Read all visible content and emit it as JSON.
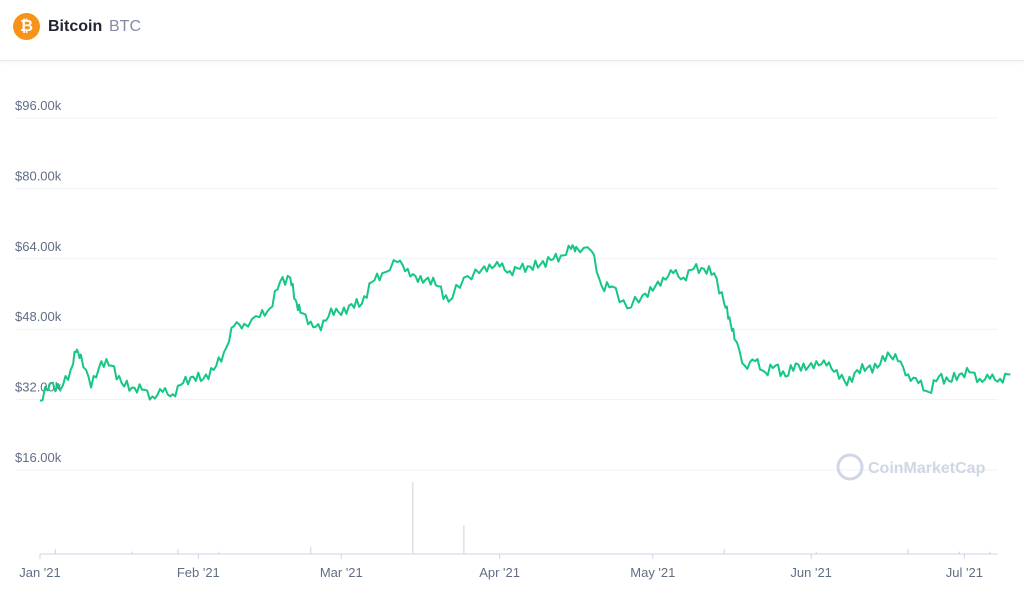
{
  "header": {
    "coin_name": "Bitcoin",
    "coin_symbol": "BTC",
    "logo_glyph": "₿",
    "logo_color": "#f7931a"
  },
  "watermark": {
    "text": "CoinMarketCap"
  },
  "colors": {
    "line": "#16c784",
    "grid": "#eff2f5",
    "axis_text": "#616e85",
    "volume": "#d4d8df"
  },
  "chart_data": {
    "type": "line",
    "title": "",
    "xlabel": "",
    "ylabel": "",
    "ylim": [
      8000,
      100000
    ],
    "y_ticks": [
      {
        "value": 96000,
        "label": "$96.00k"
      },
      {
        "value": 80000,
        "label": "$80.00k"
      },
      {
        "value": 64000,
        "label": "$64.00k"
      },
      {
        "value": 48000,
        "label": "$48.00k"
      },
      {
        "value": 32000,
        "label": "$32.00k"
      },
      {
        "value": 16000,
        "label": "$16.00k"
      }
    ],
    "x_ticks": [
      "Jan '21",
      "Feb '21",
      "Mar '21",
      "Apr '21",
      "May '21",
      "Jun '21",
      "Jul '21"
    ],
    "x_tick_days": [
      0,
      31,
      59,
      90,
      120,
      151,
      181
    ],
    "series": [
      {
        "x": [
          0,
          2,
          4,
          6,
          7,
          8,
          10,
          12,
          14,
          16,
          18,
          20,
          22,
          24,
          26,
          28,
          30,
          32,
          34,
          36,
          38,
          40,
          43,
          45,
          47,
          49,
          50,
          51,
          53,
          55,
          57,
          59,
          61,
          63,
          65,
          67,
          70,
          72,
          74,
          76,
          78,
          80,
          83,
          86,
          88,
          90,
          92,
          94,
          96,
          98,
          100,
          102,
          104,
          105,
          108,
          110,
          112,
          115,
          118,
          120,
          122,
          124,
          126,
          128,
          130,
          132,
          134,
          135,
          136,
          138,
          140,
          142,
          144,
          146,
          148,
          150,
          152,
          154,
          156,
          158,
          160,
          162,
          164,
          166,
          168,
          170,
          172,
          174,
          176,
          178,
          180,
          182,
          184,
          186,
          188,
          190
        ],
        "y": [
          29000,
          33000,
          31500,
          36000,
          40000,
          39500,
          32000,
          38000,
          37000,
          33000,
          32000,
          31500,
          30000,
          31000,
          30500,
          33000,
          34500,
          34000,
          36000,
          40000,
          46000,
          46500,
          48000,
          50000,
          56000,
          57000,
          52000,
          49000,
          47000,
          45000,
          50000,
          48500,
          51000,
          51000,
          56000,
          58000,
          60500,
          59000,
          56000,
          57000,
          55000,
          51500,
          57000,
          58000,
          60000,
          59500,
          58500,
          59000,
          59500,
          60000,
          61000,
          62000,
          63500,
          64000,
          63000,
          55000,
          55000,
          50000,
          53000,
          54000,
          57000,
          58000,
          57000,
          59000,
          59000,
          58000,
          51000,
          48000,
          43000,
          37000,
          38000,
          35500,
          37000,
          34500,
          37500,
          36000,
          38000,
          37000,
          36000,
          32500,
          36000,
          36500,
          36500,
          40000,
          38000,
          35000,
          33000,
          31000,
          34500,
          33500,
          35000,
          35500,
          34000,
          34000,
          34000,
          35000
        ]
      }
    ],
    "volume": {
      "x": [
        3,
        18,
        27,
        35,
        53,
        73,
        83,
        134,
        152,
        170,
        180,
        186
      ],
      "y": [
        2,
        1,
        2,
        1,
        3,
        30,
        12,
        2,
        1,
        2,
        1,
        1
      ]
    }
  }
}
